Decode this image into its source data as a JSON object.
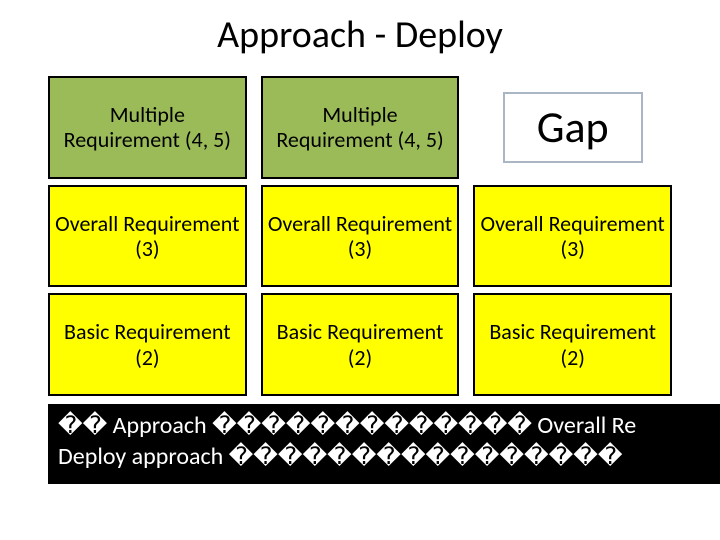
{
  "title": "Approach - Deploy",
  "grid": {
    "type": "table",
    "columns": 3,
    "rows": 3,
    "colors": {
      "green_bg": "#9bbb59",
      "yellow_bg": "#ffff00",
      "cell_border": "#000000",
      "gap_border": "#aab6c4",
      "text": "#000000",
      "background": "#ffffff"
    },
    "cells": {
      "r0c0": {
        "text": "Multiple Requirement (4, 5)",
        "style": "green"
      },
      "r0c1": {
        "text": "Multiple Requirement (4, 5)",
        "style": "green"
      },
      "r0c2": {
        "text": "Gap",
        "style": "gap"
      },
      "r1c0": {
        "text": "Overall Requirement (3)",
        "style": "yellow"
      },
      "r1c1": {
        "text": "Overall Requirement (3)",
        "style": "yellow"
      },
      "r1c2": {
        "text": "Overall Requirement (3)",
        "style": "yellow"
      },
      "r2c0": {
        "text": "Basic Requirement (2)",
        "style": "yellow"
      },
      "r2c1": {
        "text": "Basic Requirement (2)",
        "style": "yellow"
      },
      "r2c2": {
        "text": "Basic Requirement (2)",
        "style": "yellow"
      }
    }
  },
  "blackbar": {
    "bg": "#000000",
    "fg": "#ffffff",
    "line1": "�� Approach ������������� Overall Re",
    "line2": "Deploy approach ����������������"
  }
}
